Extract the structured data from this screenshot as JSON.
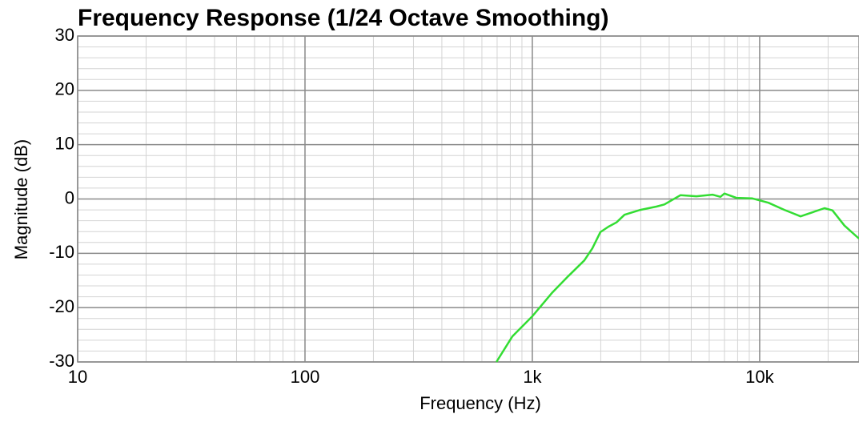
{
  "chart_data": {
    "type": "line",
    "title": "Frequency Response (1/24 Octave Smoothing)",
    "x_label": "Frequency (Hz)",
    "y_label": "Magnitude (dB)",
    "xscale": "log",
    "xlim": [
      10,
      27350
    ],
    "ylim": [
      -30,
      30
    ],
    "xticks": [
      10,
      100,
      {
        "value": 1000,
        "label": "1k"
      },
      {
        "value": 10000,
        "label": "10k"
      }
    ],
    "yticks": [
      -30,
      -20,
      -10,
      0,
      10,
      20,
      30
    ],
    "grid": true,
    "x": [
      695,
      817,
      1000,
      1225,
      1440,
      1693,
      1836,
      1991,
      2162,
      2345,
      2543,
      2988,
      3514,
      3810,
      4480,
      5270,
      6200,
      6720,
      7000,
      7900,
      9290,
      10930,
      12850,
      13940,
      15130,
      16400,
      19280,
      20900,
      23600,
      27350
    ],
    "series": [
      {
        "color": "#33dd33",
        "values": [
          -30,
          -25.3,
          -21.6,
          -17.2,
          -14.2,
          -11.3,
          -9.1,
          -6.1,
          -5.1,
          -4.3,
          -2.9,
          -2.0,
          -1.4,
          -1.0,
          0.7,
          0.5,
          0.8,
          0.4,
          1.0,
          0.2,
          0.1,
          -0.7,
          -2.0,
          -2.6,
          -3.2,
          -2.7,
          -1.7,
          -2.1,
          -4.9,
          -7.3
        ]
      }
    ]
  }
}
